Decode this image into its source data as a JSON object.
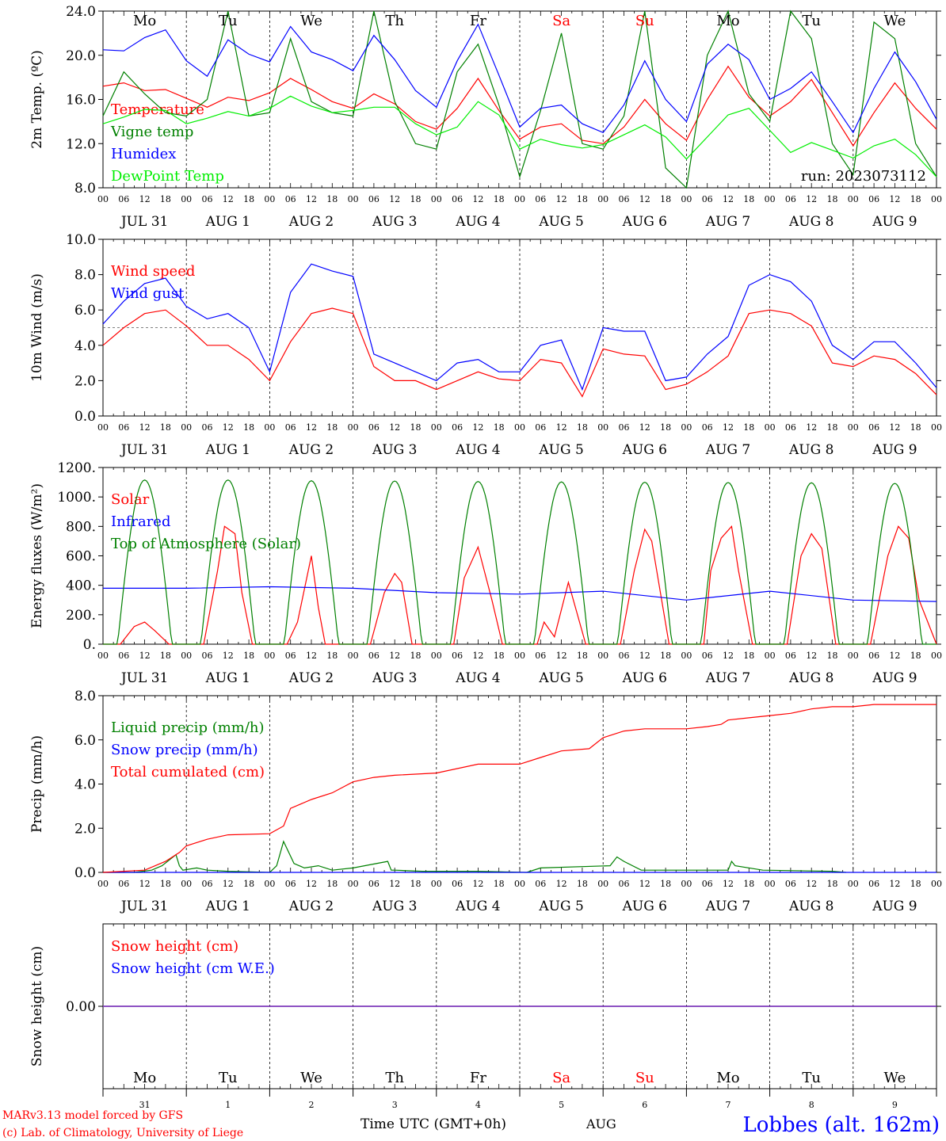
{
  "station": "Lobbes (alt. 162m)",
  "run_label": "run: 2023073112",
  "footer": {
    "model": "MARv3.13 model forced by GFS",
    "copyright": "(c) Lab. of Climatology, University of Liege",
    "time_axis": "Time UTC (GMT+0h)",
    "month": "AUG"
  },
  "days": [
    {
      "name": "Mo",
      "date": "JUL 31",
      "num": "31",
      "weekend": false
    },
    {
      "name": "Tu",
      "date": "AUG  1",
      "num": "1",
      "weekend": false
    },
    {
      "name": "We",
      "date": "AUG  2",
      "num": "2",
      "weekend": false
    },
    {
      "name": "Th",
      "date": "AUG  3",
      "num": "3",
      "weekend": false
    },
    {
      "name": "Fr",
      "date": "AUG  4",
      "num": "4",
      "weekend": false
    },
    {
      "name": "Sa",
      "date": "AUG  5",
      "num": "5",
      "weekend": true
    },
    {
      "name": "Su",
      "date": "AUG  6",
      "num": "6",
      "weekend": true
    },
    {
      "name": "Mo",
      "date": "AUG  7",
      "num": "7",
      "weekend": false
    },
    {
      "name": "Tu",
      "date": "AUG  8",
      "num": "8",
      "weekend": false
    },
    {
      "name": "We",
      "date": "AUG  9",
      "num": "9",
      "weekend": false
    }
  ],
  "hour_ticks": [
    "00",
    "06",
    "12",
    "18"
  ],
  "colors": {
    "red": "#ff0000",
    "green": "#008000",
    "blue": "#0000ff",
    "lightgreen": "#00ee00",
    "purple": "#7f3fbf"
  },
  "chart_data": [
    {
      "id": "temp",
      "type": "line",
      "ylabel": "2m Temp. (ºC)",
      "ylim": [
        8,
        24
      ],
      "yticks": [
        8,
        12,
        16,
        20,
        24
      ],
      "ytick_labels": [
        "8.0",
        "12.0",
        "16.0",
        "20.0",
        "24.0"
      ],
      "x_unit": "hours since 2023-07-31 00 UTC",
      "series": [
        {
          "name": "Temperature",
          "color": "#ff0000",
          "x": [
            0,
            6,
            12,
            18,
            24,
            30,
            36,
            42,
            48,
            54,
            60,
            66,
            72,
            78,
            84,
            90,
            96,
            102,
            108,
            114,
            120,
            126,
            132,
            138,
            144,
            150,
            156,
            162,
            168,
            174,
            180,
            186,
            192,
            198,
            204,
            210,
            216,
            222,
            228,
            234,
            240
          ],
          "y": [
            17.2,
            17.5,
            16.8,
            16.9,
            16.1,
            15.3,
            16.2,
            15.9,
            16.6,
            17.9,
            16.9,
            15.8,
            15.2,
            16.5,
            15.6,
            14.0,
            13.3,
            15.2,
            17.9,
            15.0,
            12.4,
            13.5,
            13.8,
            12.3,
            12.0,
            13.5,
            16.0,
            13.8,
            12.3,
            16.0,
            19.0,
            16.2,
            14.5,
            15.8,
            17.8,
            14.8,
            11.8,
            14.8,
            17.5,
            15.2,
            13.3
          ]
        },
        {
          "name": "Vigne temp",
          "color": "#008000",
          "x": [
            0,
            6,
            12,
            18,
            24,
            30,
            36,
            42,
            48,
            54,
            60,
            66,
            72,
            78,
            84,
            90,
            96,
            102,
            108,
            114,
            120,
            126,
            132,
            138,
            144,
            150,
            156,
            162,
            168,
            174,
            180,
            186,
            192,
            198,
            204,
            210,
            216,
            222,
            228,
            234,
            240
          ],
          "y": [
            14.5,
            18.5,
            16.5,
            14.8,
            14.5,
            16.0,
            24.0,
            14.5,
            14.8,
            21.5,
            15.8,
            14.8,
            14.5,
            24.0,
            15.8,
            12.0,
            11.5,
            18.5,
            21.0,
            15.5,
            9.0,
            15.0,
            22.0,
            12.0,
            11.5,
            14.5,
            24.0,
            9.8,
            8.0,
            20.0,
            24.0,
            16.5,
            14.0,
            24.0,
            21.5,
            12.0,
            9.2,
            23.0,
            21.5,
            12.0,
            9.0
          ]
        },
        {
          "name": "Humidex",
          "color": "#0000ff",
          "x": [
            0,
            6,
            12,
            18,
            24,
            30,
            36,
            42,
            48,
            54,
            60,
            66,
            72,
            78,
            84,
            90,
            96,
            102,
            108,
            114,
            120,
            126,
            132,
            138,
            144,
            150,
            156,
            162,
            168,
            174,
            180,
            186,
            192,
            198,
            204,
            210,
            216,
            222,
            228,
            234,
            240
          ],
          "y": [
            20.5,
            20.4,
            21.6,
            22.3,
            19.5,
            18.1,
            21.4,
            20.1,
            19.4,
            22.6,
            20.3,
            19.6,
            18.6,
            21.8,
            19.6,
            16.8,
            15.3,
            19.5,
            22.8,
            18.2,
            13.5,
            15.2,
            15.5,
            13.8,
            13.0,
            15.5,
            19.5,
            16.0,
            14.0,
            19.2,
            21.0,
            19.6,
            16.0,
            17.0,
            18.5,
            15.8,
            13.0,
            17.0,
            20.3,
            17.6,
            14.2
          ]
        },
        {
          "name": "DewPoint Temp",
          "color": "#00ee00",
          "x": [
            0,
            6,
            12,
            18,
            24,
            30,
            36,
            42,
            48,
            54,
            60,
            66,
            72,
            78,
            84,
            90,
            96,
            102,
            108,
            114,
            120,
            126,
            132,
            138,
            144,
            150,
            156,
            162,
            168,
            174,
            180,
            186,
            192,
            198,
            204,
            210,
            216,
            222,
            228,
            234,
            240
          ],
          "y": [
            13.8,
            14.4,
            15.1,
            15.0,
            13.8,
            14.3,
            14.9,
            14.5,
            15.2,
            16.3,
            15.4,
            14.8,
            15.0,
            15.3,
            15.3,
            13.8,
            12.8,
            13.5,
            15.8,
            14.6,
            11.5,
            12.4,
            11.9,
            11.6,
            11.9,
            12.8,
            13.7,
            12.6,
            10.6,
            12.6,
            14.6,
            15.2,
            13.2,
            11.2,
            12.1,
            11.4,
            10.7,
            11.8,
            12.4,
            11.0,
            9.0
          ]
        }
      ]
    },
    {
      "id": "wind",
      "type": "line",
      "ylabel": "10m Wind (m/s)",
      "ylim": [
        0,
        10
      ],
      "yticks": [
        0,
        2,
        4,
        6,
        8,
        10
      ],
      "ytick_labels": [
        "0.0",
        "2.0",
        "4.0",
        "6.0",
        "8.0",
        "10.0"
      ],
      "hline": 5.0,
      "series": [
        {
          "name": "Wind speed",
          "color": "#ff0000",
          "x": [
            0,
            6,
            12,
            18,
            24,
            30,
            36,
            42,
            48,
            54,
            60,
            66,
            72,
            78,
            84,
            90,
            96,
            102,
            108,
            114,
            120,
            126,
            132,
            138,
            144,
            150,
            156,
            162,
            168,
            174,
            180,
            186,
            192,
            198,
            204,
            210,
            216,
            222,
            228,
            234,
            240
          ],
          "y": [
            4.0,
            5.0,
            5.8,
            6.0,
            5.1,
            4.0,
            4.0,
            3.2,
            2.0,
            4.2,
            5.8,
            6.1,
            5.8,
            2.8,
            2.0,
            2.0,
            1.5,
            2.0,
            2.5,
            2.1,
            2.0,
            3.2,
            3.0,
            1.1,
            3.8,
            3.5,
            3.4,
            1.5,
            1.8,
            2.5,
            3.4,
            5.8,
            6.0,
            5.8,
            5.1,
            3.0,
            2.8,
            3.4,
            3.2,
            2.4,
            1.2
          ]
        },
        {
          "name": "Wind gust",
          "color": "#0000ff",
          "x": [
            0,
            6,
            12,
            18,
            24,
            30,
            36,
            42,
            48,
            54,
            60,
            66,
            72,
            78,
            84,
            90,
            96,
            102,
            108,
            114,
            120,
            126,
            132,
            138,
            144,
            150,
            156,
            162,
            168,
            174,
            180,
            186,
            192,
            198,
            204,
            210,
            216,
            222,
            228,
            234,
            240
          ],
          "y": [
            5.2,
            6.5,
            7.5,
            7.8,
            6.2,
            5.5,
            5.8,
            5.0,
            2.5,
            7.0,
            8.6,
            8.2,
            7.9,
            3.5,
            3.0,
            2.5,
            2.0,
            3.0,
            3.2,
            2.5,
            2.5,
            4.0,
            4.3,
            1.5,
            5.0,
            4.8,
            4.8,
            2.0,
            2.2,
            3.5,
            4.5,
            7.4,
            8.0,
            7.6,
            6.5,
            4.0,
            3.2,
            4.2,
            4.2,
            3.0,
            1.6
          ]
        }
      ]
    },
    {
      "id": "energy",
      "type": "line",
      "ylabel": "Energy fluxes (W/m²)",
      "ylim": [
        0,
        1200
      ],
      "yticks": [
        0,
        200,
        400,
        600,
        800,
        1000,
        1200
      ],
      "ytick_labels": [
        "0.",
        "200.",
        "400.",
        "600.",
        "800.",
        "1000.",
        "1200."
      ],
      "series": [
        {
          "name": "Solar",
          "color": "#ff0000",
          "x": [
            0,
            5,
            9,
            12,
            15,
            19,
            24,
            29,
            33,
            35,
            38,
            40,
            43,
            48,
            53,
            56,
            60,
            62,
            64,
            67,
            72,
            77,
            81,
            84,
            86,
            89,
            96,
            101,
            104,
            108,
            112,
            115,
            120,
            125,
            127,
            130,
            134,
            139,
            144,
            149,
            153,
            156,
            158,
            163,
            168,
            173,
            175,
            178,
            181,
            183,
            187,
            192,
            197,
            201,
            204,
            207,
            211,
            216,
            221,
            226,
            229,
            232,
            235,
            240
          ],
          "y": [
            0,
            0,
            120,
            150,
            90,
            0,
            0,
            0,
            500,
            800,
            750,
            350,
            0,
            0,
            0,
            150,
            600,
            250,
            0,
            0,
            0,
            0,
            350,
            480,
            420,
            0,
            0,
            0,
            450,
            660,
            300,
            0,
            0,
            0,
            150,
            50,
            420,
            0,
            0,
            0,
            500,
            780,
            700,
            0,
            0,
            0,
            500,
            720,
            800,
            500,
            0,
            0,
            0,
            600,
            750,
            650,
            0,
            0,
            0,
            600,
            800,
            720,
            300,
            0
          ]
        },
        {
          "name": "Infrared",
          "color": "#0000ff",
          "x": [
            0,
            24,
            48,
            72,
            96,
            120,
            144,
            168,
            192,
            216,
            240
          ],
          "y": [
            380,
            380,
            390,
            380,
            350,
            340,
            360,
            300,
            360,
            300,
            290
          ]
        },
        {
          "name": "Top of Atmosphere (Solar)",
          "color": "#008000",
          "peak": [
            1115,
            1115,
            1110,
            1108,
            1105,
            1102,
            1100,
            1098,
            1096,
            1092
          ],
          "sunrise_h": 4.2,
          "sunset_h": 19.8
        }
      ]
    },
    {
      "id": "precip",
      "type": "line",
      "ylabel": "Precip (mm/h)",
      "ylim": [
        0,
        8
      ],
      "yticks": [
        0,
        2,
        4,
        6,
        8
      ],
      "ytick_labels": [
        "0.0",
        "2.0",
        "4.0",
        "6.0",
        "8.0"
      ],
      "series": [
        {
          "name": "Liquid precip (mm/h)",
          "color": "#008000",
          "x": [
            0,
            9,
            14,
            17,
            21,
            22,
            23,
            27,
            30,
            36,
            48,
            50,
            52,
            55,
            58,
            62,
            66,
            72,
            82,
            83,
            84,
            92,
            103,
            108,
            122,
            126,
            146,
            148,
            150,
            155,
            180,
            181,
            182,
            190,
            210,
            214
          ],
          "y": [
            0,
            0,
            0.1,
            0.3,
            0.8,
            0.3,
            0.1,
            0.2,
            0.1,
            0.05,
            0,
            0.3,
            1.4,
            0.4,
            0.2,
            0.3,
            0.1,
            0.2,
            0.5,
            0.1,
            0.1,
            0.05,
            0.05,
            0.05,
            0,
            0.2,
            0.3,
            0.7,
            0.5,
            0.1,
            0.1,
            0.5,
            0.3,
            0.1,
            0.05,
            0
          ]
        },
        {
          "name": "Snow precip (mm/h)",
          "color": "#0000ff",
          "x": [
            0,
            240
          ],
          "y": [
            0,
            0
          ]
        },
        {
          "name": "Total cumulated (cm)",
          "color": "#ff0000",
          "x": [
            0,
            12,
            18,
            22,
            24,
            30,
            36,
            48,
            52,
            54,
            60,
            66,
            72,
            78,
            84,
            96,
            108,
            120,
            126,
            132,
            140,
            144,
            150,
            156,
            168,
            174,
            178,
            180,
            186,
            192,
            198,
            204,
            210,
            216,
            222,
            228,
            234,
            240
          ],
          "y": [
            0,
            0.1,
            0.5,
            0.9,
            1.2,
            1.5,
            1.7,
            1.75,
            2.1,
            2.9,
            3.3,
            3.6,
            4.1,
            4.3,
            4.4,
            4.5,
            4.9,
            4.9,
            5.2,
            5.5,
            5.6,
            6.1,
            6.4,
            6.5,
            6.5,
            6.6,
            6.7,
            6.9,
            7.0,
            7.1,
            7.2,
            7.4,
            7.5,
            7.5,
            7.6,
            7.6,
            7.6,
            7.6
          ]
        }
      ]
    },
    {
      "id": "snow",
      "type": "line",
      "ylabel": "Snow height (cm)",
      "ylim": [
        -1,
        1
      ],
      "yticks": [
        0
      ],
      "ytick_labels": [
        "0.00"
      ],
      "series": [
        {
          "name": "Snow height (cm)",
          "color": "#ff0000",
          "x": [
            0,
            240
          ],
          "y": [
            0,
            0
          ]
        },
        {
          "name": "Snow height (cm W.E.)",
          "color": "#0000ff",
          "x": [
            0,
            240
          ],
          "y": [
            0,
            0
          ]
        }
      ]
    }
  ]
}
